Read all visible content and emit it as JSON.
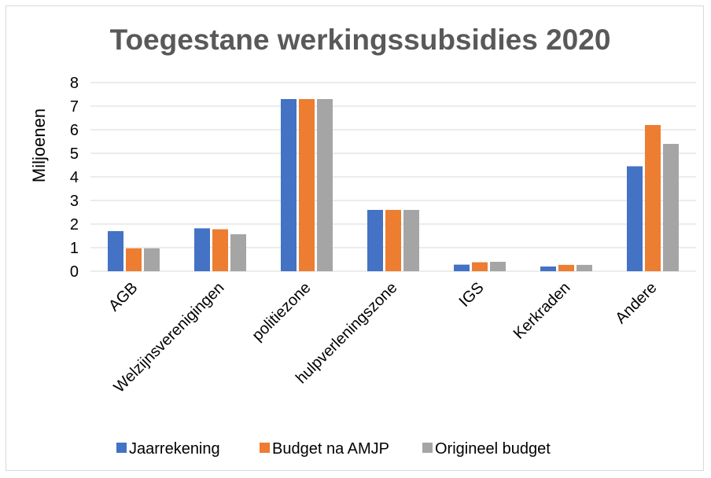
{
  "chart_data": {
    "type": "bar",
    "title": "Toegestane werkingssubsidies 2020",
    "ylabel": "Miljoenen",
    "xlabel": "",
    "ylim": [
      0,
      8
    ],
    "yticks": [
      0,
      1,
      2,
      3,
      4,
      5,
      6,
      7,
      8
    ],
    "grid": true,
    "legend_position": "bottom",
    "categories": [
      "AGB",
      "Welzijnsverenigingen",
      "politiezone",
      "hulpverleningszone",
      "IGS",
      "Kerkraden",
      "Andere"
    ],
    "series": [
      {
        "name": "Jaarrekening",
        "color": "#4472c4",
        "values": [
          1.7,
          1.82,
          7.3,
          2.6,
          0.28,
          0.2,
          4.45
        ]
      },
      {
        "name": "Budget na AMJP",
        "color": "#ed7d31",
        "values": [
          0.97,
          1.78,
          7.3,
          2.6,
          0.38,
          0.27,
          6.2
        ]
      },
      {
        "name": "Origineel budget",
        "color": "#a5a5a5",
        "values": [
          0.97,
          1.57,
          7.3,
          2.6,
          0.4,
          0.27,
          5.4
        ]
      }
    ]
  }
}
